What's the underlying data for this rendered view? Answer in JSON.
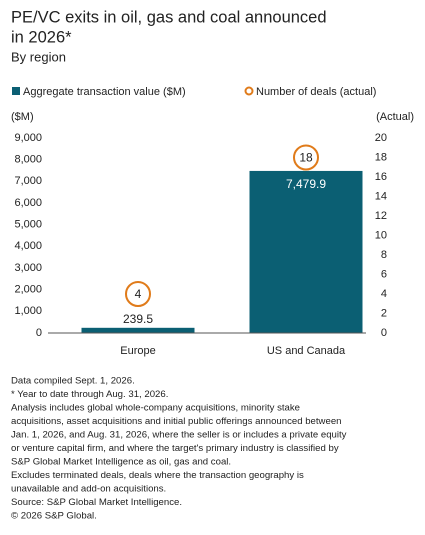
{
  "chart_data": {
    "type": "bar",
    "title_lines": [
      "PE/VC exits in oil, gas and coal announced",
      "in 2026*"
    ],
    "subtitle": "By region",
    "y_label": "($M)",
    "y2_label": "(Actual)",
    "categories": [
      "Europe",
      "US and Canada"
    ],
    "series": [
      {
        "name": "Aggregate transaction value ($M)",
        "color": "#0b5f73",
        "type": "bar",
        "values": [
          239.5,
          7479.9
        ],
        "value_labels": [
          "239.5",
          "7,479.9"
        ]
      },
      {
        "name": "Number of deals (actual)",
        "color": "#e07b1a",
        "type": "marker",
        "axis": "y2",
        "values": [
          4,
          18
        ]
      }
    ],
    "ylim": [
      0,
      9000
    ],
    "yticks": [
      0,
      {
        "value": 1000,
        "label": "1,000"
      },
      {
        "value": 2000,
        "label": "2,000"
      },
      {
        "value": 3000,
        "label": "3,000"
      },
      {
        "value": 4000,
        "label": "4,000"
      },
      {
        "value": 5000,
        "label": "5,000"
      },
      {
        "value": 6000,
        "label": "6,000"
      },
      {
        "value": 7000,
        "label": "7,000"
      },
      {
        "value": 8000,
        "label": "8,000"
      },
      {
        "value": 9000,
        "label": "9,000"
      }
    ],
    "y2lim": [
      0,
      20
    ],
    "y2ticks": [
      0,
      2,
      4,
      6,
      8,
      10,
      12,
      14,
      16,
      18,
      20
    ],
    "grid": false,
    "notes": [
      "Data compiled Sept. 1, 2026.",
      "* Year to date through Aug. 31, 2026.",
      "Analysis includes global whole-company acquisitions, minority stake",
      "acquisitions, asset acquisitions and initial public offerings announced between",
      "Jan. 1, 2026, and Aug. 31, 2026, where the seller is or includes a private equity",
      "or venture capital firm, and where the target's primary industry is classified by",
      "S&P Global Market Intelligence as oil, gas and coal.",
      "Excludes terminated deals, deals where the transaction geography is",
      "unavailable and add-on acquisitions.",
      "Source: S&P Global Market Intelligence.",
      "© 2026 S&P Global."
    ]
  }
}
